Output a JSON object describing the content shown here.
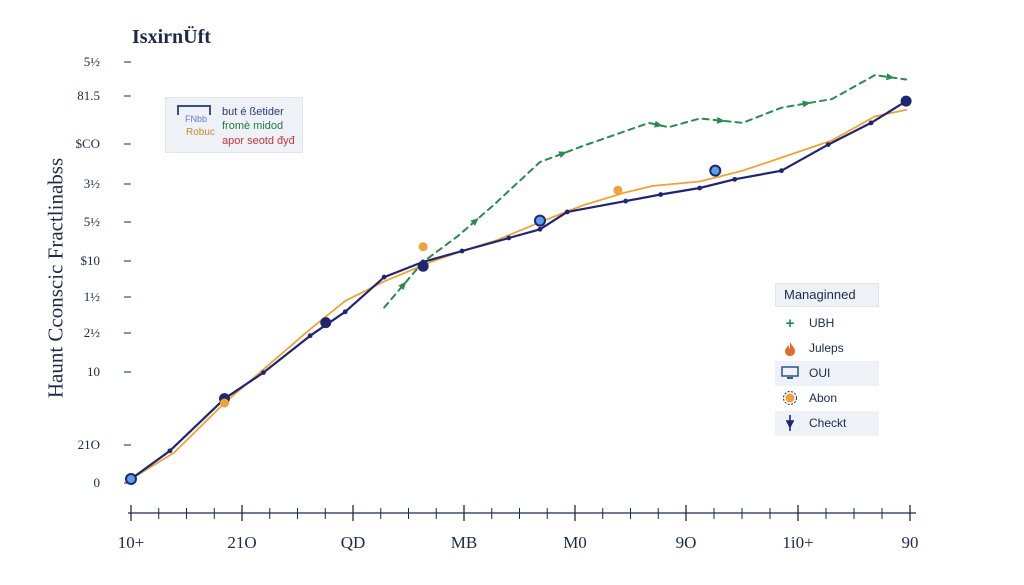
{
  "title": "IsxirnÜft",
  "chart_data": {
    "type": "line",
    "title": "IsxirnÜft",
    "ylabel": "Haunt Cconscic Fractlinabss",
    "xlabel": "",
    "x_ticks": [
      "10+",
      "21O",
      "QD",
      "MB",
      "M0",
      "9O",
      "1i0+",
      "90"
    ],
    "y_ticks": [
      "0",
      "21O",
      "10",
      "2½",
      "1½",
      "$10",
      "5½",
      "3½",
      "$CO",
      "81.5",
      "5½"
    ],
    "grid": false,
    "series": [
      {
        "name": "UBH",
        "color": "#2a8a50",
        "style": "dashed",
        "values": [
          [
            6.5,
            0.79
          ],
          [
            7.5,
            1.0
          ],
          [
            8.4,
            1.12
          ],
          [
            9.3,
            1.26
          ],
          [
            10.5,
            1.46
          ],
          [
            11.7,
            1.54
          ],
          [
            13.3,
            1.64
          ],
          [
            13.8,
            1.62
          ],
          [
            14.6,
            1.66
          ],
          [
            15.7,
            1.64
          ],
          [
            16.7,
            1.71
          ],
          [
            18.0,
            1.75
          ],
          [
            19.1,
            1.86
          ],
          [
            19.9,
            1.84
          ]
        ]
      },
      {
        "name": "Julebs",
        "color": "#f0a23a",
        "style": "solid",
        "values": [
          [
            0,
            0
          ],
          [
            1.1,
            0.12
          ],
          [
            2.4,
            0.35
          ],
          [
            3.5,
            0.52
          ],
          [
            4.6,
            0.69
          ],
          [
            5.5,
            0.82
          ],
          [
            6.5,
            0.91
          ],
          [
            7.7,
            1.0
          ],
          [
            8.5,
            1.05
          ],
          [
            9.4,
            1.1
          ],
          [
            10.6,
            1.19
          ],
          [
            11.6,
            1.26
          ],
          [
            12.7,
            1.32
          ],
          [
            13.4,
            1.35
          ],
          [
            14.6,
            1.37
          ],
          [
            15.7,
            1.42
          ],
          [
            16.7,
            1.48
          ],
          [
            18.0,
            1.56
          ],
          [
            19.1,
            1.67
          ],
          [
            19.9,
            1.7
          ]
        ]
      },
      {
        "name": "Checkt",
        "color": "#1f2670",
        "style": "solid",
        "values": [
          [
            0,
            0
          ],
          [
            1.0,
            0.13
          ],
          [
            2.4,
            0.37
          ],
          [
            3.4,
            0.49
          ],
          [
            4.6,
            0.66
          ],
          [
            5.5,
            0.77
          ],
          [
            6.5,
            0.93
          ],
          [
            7.5,
            1.0
          ],
          [
            8.5,
            1.05
          ],
          [
            9.7,
            1.11
          ],
          [
            10.5,
            1.15
          ],
          [
            11.2,
            1.23
          ],
          [
            12.7,
            1.28
          ],
          [
            13.6,
            1.31
          ],
          [
            14.6,
            1.34
          ],
          [
            15.5,
            1.38
          ],
          [
            16.7,
            1.42
          ],
          [
            17.9,
            1.54
          ],
          [
            19.0,
            1.64
          ],
          [
            19.9,
            1.74
          ]
        ]
      }
    ],
    "annotations": {
      "light_blue_points": [
        [
          0,
          0
        ],
        [
          10.5,
          1.19
        ],
        [
          15.0,
          1.42
        ]
      ],
      "orange_points": [
        [
          2.4,
          0.35
        ],
        [
          7.5,
          1.07
        ],
        [
          12.5,
          1.33
        ]
      ],
      "navy_points": [
        [
          2.4,
          0.37
        ],
        [
          5.0,
          0.72
        ],
        [
          7.5,
          0.98
        ],
        [
          19.9,
          1.74
        ]
      ]
    }
  },
  "legend_top_left": {
    "glyph_text_1": "FNbb",
    "glyph_text_2": "Robuc",
    "entries": [
      "but é ßetider",
      "fromè midod",
      "apor seotd đyđ"
    ]
  },
  "legend_bottom_right": {
    "title": "Managinned",
    "entries": [
      {
        "label": "UBH",
        "color": "#2a8a50"
      },
      {
        "label": "Juleps",
        "color": "#e26a2c"
      },
      {
        "label": "OUI",
        "color": "#2d5e9a"
      },
      {
        "label": "Abon",
        "color": "#f0a23a"
      },
      {
        "label": "Checkt",
        "color": "#1f2670"
      }
    ]
  }
}
